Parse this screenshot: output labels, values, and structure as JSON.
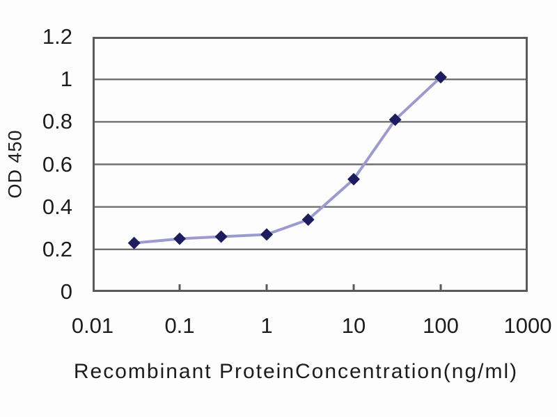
{
  "figure": {
    "background": "#fdfdfd"
  },
  "chart_data": {
    "type": "line",
    "title": "",
    "xlabel": "Recombinant ProteinConcentration(ng/ml)",
    "ylabel": "OD 450",
    "x_scale": "log",
    "xlim": [
      0.01,
      1000
    ],
    "ylim": [
      0,
      1.2
    ],
    "x_ticks": [
      0.01,
      0.1,
      1,
      10,
      100,
      1000
    ],
    "x_tick_labels": [
      "0.01",
      "0.1",
      "1",
      "10",
      "100",
      "1000"
    ],
    "y_ticks": [
      0,
      0.2,
      0.4,
      0.6,
      0.8,
      1,
      1.2
    ],
    "y_tick_labels": [
      "0",
      "0.2",
      "0.4",
      "0.6",
      "0.8",
      "1",
      "1.2"
    ],
    "grid": "horizontal",
    "legend": "none",
    "series": [
      {
        "name": "OD 450",
        "marker": "diamond",
        "x": [
          0.03,
          0.1,
          0.3,
          1,
          3,
          10,
          30,
          100
        ],
        "y": [
          0.23,
          0.25,
          0.26,
          0.27,
          0.34,
          0.53,
          0.81,
          1.01
        ]
      }
    ],
    "colors": {
      "line": "#9b9bd0",
      "marker": "#1c1c5e",
      "grid": "#6f6f6f",
      "axis": "#5a5a5a",
      "text": "#1c1c1c"
    }
  }
}
